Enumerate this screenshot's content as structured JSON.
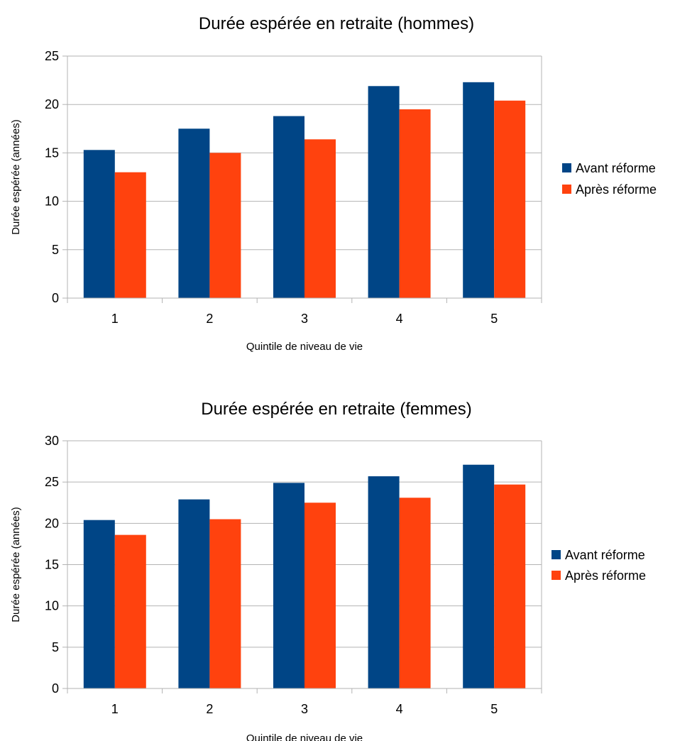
{
  "chart_data": [
    {
      "type": "bar",
      "title": "Durée espérée en retraite (hommes)",
      "xlabel": "Quintile de niveau de vie",
      "ylabel": "Durée espérée (années)",
      "categories": [
        "1",
        "2",
        "3",
        "4",
        "5"
      ],
      "ylim": [
        0,
        25
      ],
      "yticks": [
        0,
        5,
        10,
        15,
        20,
        25
      ],
      "grid": true,
      "legend_position": "right",
      "series": [
        {
          "name": "Avant réforme",
          "color": "#004586",
          "values": [
            15.3,
            17.5,
            18.8,
            21.9,
            22.3
          ]
        },
        {
          "name": "Après réforme",
          "color": "#ff420e",
          "values": [
            13.0,
            15.0,
            16.4,
            19.5,
            20.4
          ]
        }
      ]
    },
    {
      "type": "bar",
      "title": "Durée espérée en retraite (femmes)",
      "xlabel": "Quintile de niveau de vie",
      "ylabel": "Durée espérée (années)",
      "categories": [
        "1",
        "2",
        "3",
        "4",
        "5"
      ],
      "ylim": [
        0,
        30
      ],
      "yticks": [
        0,
        5,
        10,
        15,
        20,
        25,
        30
      ],
      "grid": true,
      "legend_position": "right",
      "series": [
        {
          "name": "Avant réforme",
          "color": "#004586",
          "values": [
            20.4,
            22.9,
            24.9,
            25.7,
            27.1
          ]
        },
        {
          "name": "Après réforme",
          "color": "#ff420e",
          "values": [
            18.6,
            20.5,
            22.5,
            23.1,
            24.7
          ]
        }
      ]
    }
  ]
}
